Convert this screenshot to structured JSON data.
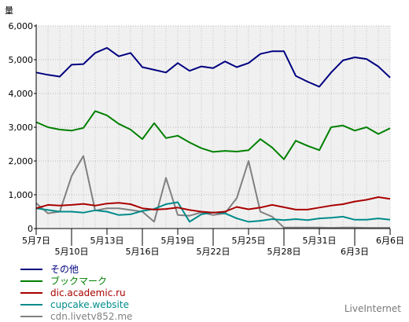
{
  "chart_data": {
    "type": "line",
    "ylabel": "量",
    "ylim": [
      0,
      6000
    ],
    "yticks": [
      0,
      1000,
      2000,
      3000,
      4000,
      5000,
      6000
    ],
    "ytick_labels": [
      "0",
      "1,000",
      "2,000",
      "3,000",
      "4,000",
      "5,000",
      "6,000"
    ],
    "categories": [
      "5月7日",
      "5月8日",
      "5月9日",
      "5月10日",
      "5月11日",
      "5月12日",
      "5月13日",
      "5月14日",
      "5月15日",
      "5月16日",
      "5月17日",
      "5月18日",
      "5月19日",
      "5月20日",
      "5月21日",
      "5月22日",
      "5月23日",
      "5月24日",
      "5月25日",
      "5月26日",
      "5月27日",
      "5月28日",
      "5月29日",
      "5月30日",
      "5月31日",
      "6月1日",
      "6月2日",
      "6月3日",
      "6月4日",
      "6月5日",
      "6月6日"
    ],
    "xtick_labels_top": [
      {
        "index": 0,
        "label": "5月7日"
      },
      {
        "index": 6,
        "label": "5月13日"
      },
      {
        "index": 12,
        "label": "5月19日"
      },
      {
        "index": 18,
        "label": "5月25日"
      },
      {
        "index": 24,
        "label": "5月31日"
      },
      {
        "index": 30,
        "label": "6月6日"
      }
    ],
    "xtick_labels_bottom": [
      {
        "index": 3,
        "label": "5月10日"
      },
      {
        "index": 9,
        "label": "5月16日"
      },
      {
        "index": 15,
        "label": "5月22日"
      },
      {
        "index": 21,
        "label": "5月28日"
      },
      {
        "index": 27,
        "label": "6月3日"
      }
    ],
    "grid": true,
    "legend_position": "bottom-left",
    "series": [
      {
        "name": "その他",
        "color": "#000080",
        "values": [
          4620,
          4550,
          4500,
          4850,
          4870,
          5200,
          5350,
          5100,
          5200,
          4780,
          4700,
          4620,
          4900,
          4670,
          4800,
          4750,
          4950,
          4780,
          4900,
          5170,
          5250,
          5250,
          4520,
          4350,
          4200,
          4620,
          4980,
          5070,
          5020,
          4800,
          4470
        ]
      },
      {
        "name": "ブックマーク",
        "color": "#008000",
        "values": [
          3150,
          3000,
          2930,
          2900,
          2980,
          3480,
          3350,
          3100,
          2930,
          2650,
          3120,
          2680,
          2750,
          2550,
          2380,
          2270,
          2300,
          2280,
          2320,
          2650,
          2400,
          2050,
          2600,
          2450,
          2320,
          3000,
          3050,
          2900,
          3000,
          2800,
          2970
        ]
      },
      {
        "name": "dic.academic.ru",
        "color": "#aa0000",
        "values": [
          600,
          700,
          680,
          700,
          730,
          680,
          740,
          760,
          720,
          600,
          560,
          580,
          620,
          550,
          500,
          470,
          500,
          640,
          570,
          620,
          700,
          630,
          560,
          560,
          620,
          680,
          720,
          800,
          850,
          930,
          880
        ]
      },
      {
        "name": "cupcake.website",
        "color": "#008b8b",
        "values": [
          600,
          550,
          500,
          500,
          470,
          540,
          500,
          400,
          420,
          520,
          580,
          720,
          780,
          200,
          420,
          480,
          450,
          300,
          200,
          230,
          280,
          250,
          280,
          250,
          300,
          320,
          350,
          260,
          260,
          300,
          260
        ]
      },
      {
        "name": "cdn.livetv852.me",
        "color": "#808080",
        "values": [
          750,
          450,
          500,
          1550,
          2150,
          530,
          600,
          600,
          550,
          500,
          200,
          1500,
          400,
          380,
          480,
          400,
          450,
          900,
          2000,
          500,
          350,
          30,
          30,
          30,
          30,
          20,
          30,
          30,
          20,
          20,
          20
        ]
      }
    ]
  },
  "brand": "LiveInternet"
}
